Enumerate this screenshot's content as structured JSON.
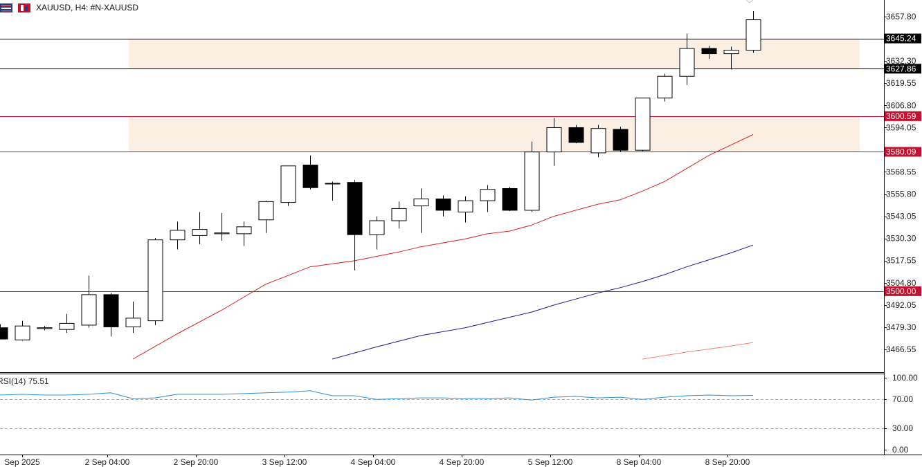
{
  "header": {
    "symbol_text": "XAUUSD, H4:  #N-XAUUSD"
  },
  "rsi": {
    "label": "RSI(14) 75.51"
  },
  "colors": {
    "zone": "#fbefe3",
    "red_line": "#c8102e",
    "black_line": "#000000",
    "ma_red": "#d62020",
    "ma_blue": "#1a1a8c",
    "ma_light_red": "#f08070",
    "rsi_line": "#2a8fd6",
    "label_black_bg": "#000000",
    "label_red_bg": "#c8102e"
  },
  "chart_data": {
    "type": "candlestick",
    "symbol": "XAUUSD",
    "timeframe": "H4",
    "price_ticks": [
      "3657.80",
      "3632.30",
      "3619.55",
      "3606.80",
      "3594.05",
      "3568.55",
      "3555.80",
      "3543.05",
      "3530.30",
      "3517.55",
      "3504.80",
      "3492.05",
      "3479.30",
      "3466.55"
    ],
    "time_labels": [
      "Sep 2025",
      "2 Sep 04:00",
      "2 Sep 20:00",
      "3 Sep 12:00",
      "4 Sep 04:00",
      "4 Sep 20:00",
      "5 Sep 12:00",
      "8 Sep 04:00",
      "8 Sep 20:00"
    ],
    "levels": [
      {
        "price": 3645.24,
        "label": "3645.24",
        "style": "black"
      },
      {
        "price": 3627.86,
        "label": "3627.86",
        "style": "black"
      },
      {
        "price": 3600.59,
        "label": "3600.59",
        "style": "red"
      },
      {
        "price": 3580.09,
        "label": "3580.09",
        "style": "red"
      },
      {
        "price": 3500.0,
        "label": "3500.00",
        "style": "red"
      }
    ],
    "zones": [
      {
        "from": 3627.86,
        "to": 3645.24
      },
      {
        "from": 3580.09,
        "to": 3600.59
      }
    ],
    "candles": [
      {
        "o": 3479.0,
        "h": 3481.0,
        "l": 3472.5,
        "c": 3472.5
      },
      {
        "o": 3472.0,
        "h": 3483.0,
        "l": 3471.5,
        "c": 3480.0
      },
      {
        "o": 3478.5,
        "h": 3480.0,
        "l": 3477.5,
        "c": 3479.0
      },
      {
        "o": 3478.0,
        "h": 3487.0,
        "l": 3476.0,
        "c": 3481.5
      },
      {
        "o": 3480.5,
        "h": 3509.0,
        "l": 3479.0,
        "c": 3498.0
      },
      {
        "o": 3498.0,
        "h": 3499.0,
        "l": 3474.0,
        "c": 3479.5
      },
      {
        "o": 3479.5,
        "h": 3494.0,
        "l": 3476.0,
        "c": 3484.5
      },
      {
        "o": 3483.0,
        "h": 3530.5,
        "l": 3480.5,
        "c": 3529.5
      },
      {
        "o": 3529.5,
        "h": 3540.0,
        "l": 3524.0,
        "c": 3535.0
      },
      {
        "o": 3532.0,
        "h": 3545.5,
        "l": 3527.0,
        "c": 3535.5
      },
      {
        "o": 3533.0,
        "h": 3545.0,
        "l": 3529.0,
        "c": 3533.5
      },
      {
        "o": 3533.0,
        "h": 3540.0,
        "l": 3526.0,
        "c": 3537.0
      },
      {
        "o": 3541.0,
        "h": 3552.0,
        "l": 3533.5,
        "c": 3551.5
      },
      {
        "o": 3551.0,
        "h": 3572.0,
        "l": 3549.0,
        "c": 3572.0
      },
      {
        "o": 3572.5,
        "h": 3578.0,
        "l": 3558.5,
        "c": 3559.5
      },
      {
        "o": 3562.0,
        "h": 3563.0,
        "l": 3552.0,
        "c": 3562.0
      },
      {
        "o": 3562.5,
        "h": 3564.0,
        "l": 3512.0,
        "c": 3532.5
      },
      {
        "o": 3532.5,
        "h": 3543.0,
        "l": 3524.0,
        "c": 3540.5
      },
      {
        "o": 3540.5,
        "h": 3551.5,
        "l": 3536.0,
        "c": 3547.5
      },
      {
        "o": 3549.0,
        "h": 3559.0,
        "l": 3533.5,
        "c": 3553.0
      },
      {
        "o": 3553.0,
        "h": 3555.0,
        "l": 3543.0,
        "c": 3546.5
      },
      {
        "o": 3545.5,
        "h": 3554.5,
        "l": 3539.5,
        "c": 3552.0
      },
      {
        "o": 3552.0,
        "h": 3561.0,
        "l": 3545.5,
        "c": 3558.5
      },
      {
        "o": 3559.0,
        "h": 3560.0,
        "l": 3546.0,
        "c": 3546.5
      },
      {
        "o": 3546.5,
        "h": 3586.0,
        "l": 3545.5,
        "c": 3580.0
      },
      {
        "o": 3580.0,
        "h": 3599.5,
        "l": 3572.0,
        "c": 3594.0
      },
      {
        "o": 3594.0,
        "h": 3595.5,
        "l": 3585.0,
        "c": 3585.5
      },
      {
        "o": 3579.5,
        "h": 3595.5,
        "l": 3577.0,
        "c": 3593.5
      },
      {
        "o": 3593.0,
        "h": 3594.5,
        "l": 3580.0,
        "c": 3581.0
      },
      {
        "o": 3581.0,
        "h": 3611.0,
        "l": 3580.5,
        "c": 3611.0
      },
      {
        "o": 3611.0,
        "h": 3625.0,
        "l": 3609.0,
        "c": 3623.5
      },
      {
        "o": 3623.5,
        "h": 3648.0,
        "l": 3618.5,
        "c": 3639.5
      },
      {
        "o": 3639.5,
        "h": 3641.0,
        "l": 3633.5,
        "c": 3636.5
      },
      {
        "o": 3636.5,
        "h": 3640.5,
        "l": 3627.5,
        "c": 3638.5
      },
      {
        "o": 3638.5,
        "h": 3661.0,
        "l": 3637.0,
        "c": 3656.0
      }
    ],
    "ma_series": [
      {
        "color": "red",
        "points": [
          [
            6,
            3461.0
          ],
          [
            8,
            3475.5
          ],
          [
            10,
            3489.0
          ],
          [
            12,
            3504.0
          ],
          [
            14,
            3514.0
          ],
          [
            16,
            3517.5
          ],
          [
            18,
            3522.5
          ],
          [
            19,
            3525.5
          ],
          [
            21,
            3530.0
          ],
          [
            22,
            3533.0
          ],
          [
            23,
            3534.5
          ],
          [
            24,
            3538.0
          ],
          [
            25,
            3543.0
          ],
          [
            26,
            3546.5
          ],
          [
            27,
            3550.0
          ],
          [
            28,
            3552.5
          ],
          [
            29,
            3557.5
          ],
          [
            30,
            3563.0
          ],
          [
            31,
            3570.5
          ],
          [
            32,
            3578.0
          ],
          [
            33,
            3584.0
          ],
          [
            34,
            3590.0
          ]
        ]
      },
      {
        "color": "blue",
        "points": [
          [
            15,
            3461.0
          ],
          [
            17,
            3468.0
          ],
          [
            19,
            3474.5
          ],
          [
            21,
            3479.0
          ],
          [
            22,
            3482.0
          ],
          [
            23,
            3485.0
          ],
          [
            24,
            3488.0
          ],
          [
            25,
            3492.0
          ],
          [
            26,
            3495.5
          ],
          [
            27,
            3499.0
          ],
          [
            28,
            3502.0
          ],
          [
            29,
            3505.5
          ],
          [
            30,
            3509.5
          ],
          [
            31,
            3514.0
          ],
          [
            32,
            3518.0
          ],
          [
            33,
            3522.0
          ],
          [
            34,
            3526.5
          ]
        ]
      },
      {
        "color": "light-red",
        "points": [
          [
            29,
            3461.0
          ],
          [
            31,
            3465.0
          ],
          [
            33,
            3468.5
          ],
          [
            34,
            3470.5
          ]
        ]
      }
    ],
    "rsi": {
      "ticks": [
        "100.00",
        "70.00",
        "30.00",
        "0.00"
      ],
      "levels": [
        70,
        30
      ],
      "values": [
        76,
        77,
        76,
        76,
        77,
        79,
        71,
        72,
        77,
        77,
        77,
        78,
        79,
        80,
        82,
        75,
        75,
        70,
        71,
        72,
        72,
        71,
        71,
        72,
        69,
        73,
        74,
        72,
        73,
        70,
        73,
        75,
        76,
        75,
        75.51
      ]
    }
  }
}
